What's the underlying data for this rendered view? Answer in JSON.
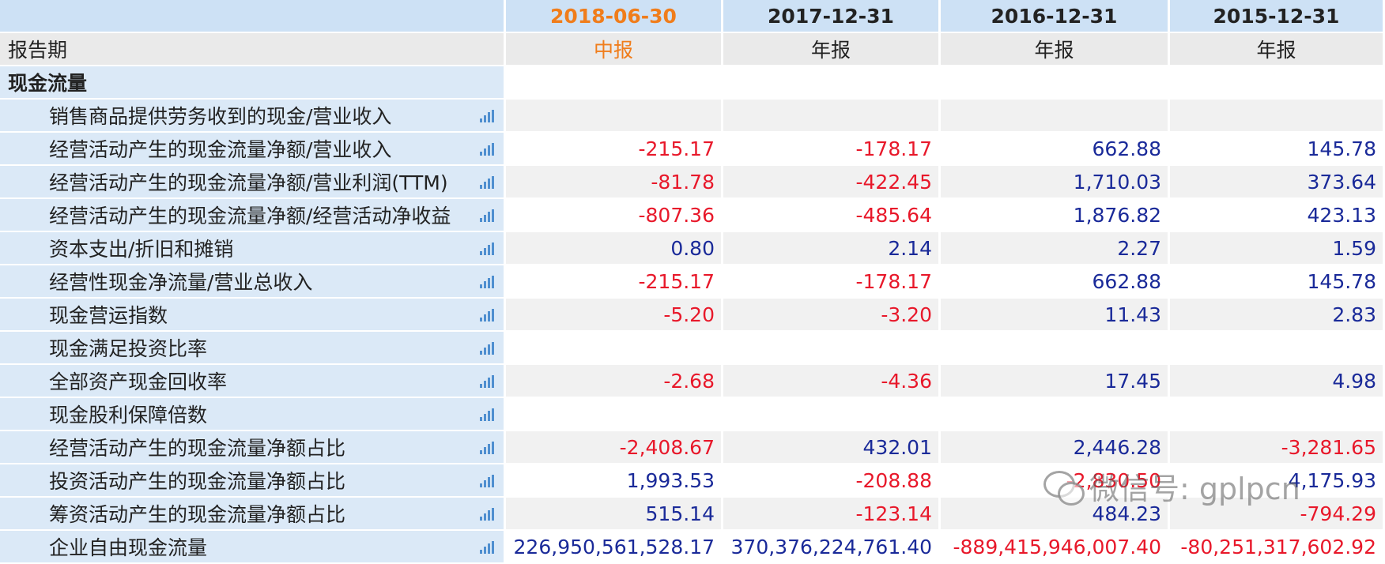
{
  "header": {
    "periods": [
      "2018-06-30",
      "2017-12-31",
      "2016-12-31",
      "2015-12-31"
    ],
    "report_period_label": "报告期",
    "report_types": [
      "中报",
      "年报",
      "年报",
      "年报"
    ]
  },
  "section": {
    "title": "现金流量"
  },
  "rows": [
    {
      "label": "销售商品提供劳务收到的现金/营业收入",
      "values": [
        "",
        "",
        "",
        ""
      ]
    },
    {
      "label": "经营活动产生的现金流量净额/营业收入",
      "values": [
        "-215.17",
        "-178.17",
        "662.88",
        "145.78"
      ]
    },
    {
      "label": "经营活动产生的现金流量净额/营业利润(TTM)",
      "values": [
        "-81.78",
        "-422.45",
        "1,710.03",
        "373.64"
      ]
    },
    {
      "label": "经营活动产生的现金流量净额/经营活动净收益",
      "values": [
        "-807.36",
        "-485.64",
        "1,876.82",
        "423.13"
      ]
    },
    {
      "label": "资本支出/折旧和摊销",
      "values": [
        "0.80",
        "2.14",
        "2.27",
        "1.59"
      ]
    },
    {
      "label": "经营性现金净流量/营业总收入",
      "values": [
        "-215.17",
        "-178.17",
        "662.88",
        "145.78"
      ]
    },
    {
      "label": "现金营运指数",
      "values": [
        "-5.20",
        "-3.20",
        "11.43",
        "2.83"
      ]
    },
    {
      "label": "现金满足投资比率",
      "values": [
        "",
        "",
        "",
        ""
      ]
    },
    {
      "label": "全部资产现金回收率",
      "values": [
        "-2.68",
        "-4.36",
        "17.45",
        "4.98"
      ]
    },
    {
      "label": "现金股利保障倍数",
      "values": [
        "",
        "",
        "",
        ""
      ]
    },
    {
      "label": "经营活动产生的现金流量净额占比",
      "values": [
        "-2,408.67",
        "432.01",
        "2,446.28",
        "-3,281.65"
      ]
    },
    {
      "label": "投资活动产生的现金流量净额占比",
      "values": [
        "1,993.53",
        "-208.88",
        "-2,830.50",
        "4,175.93"
      ]
    },
    {
      "label": "筹资活动产生的现金流量净额占比",
      "values": [
        "515.14",
        "-123.14",
        "484.23",
        "-794.29"
      ]
    },
    {
      "label": "企业自由现金流量",
      "values": [
        "226,950,561,528.17",
        "370,376,224,761.40",
        "-889,415,946,007.40",
        "-80,251,317,602.92"
      ]
    }
  ],
  "icons": {
    "row_chart": "bar-chart-icon"
  },
  "colors": {
    "negative": "#e8182a",
    "positive": "#1a2a99",
    "current_period": "#f07d1b",
    "header_bg": "#cde1f5"
  },
  "watermark": {
    "text": "微信号: gplpcn"
  }
}
